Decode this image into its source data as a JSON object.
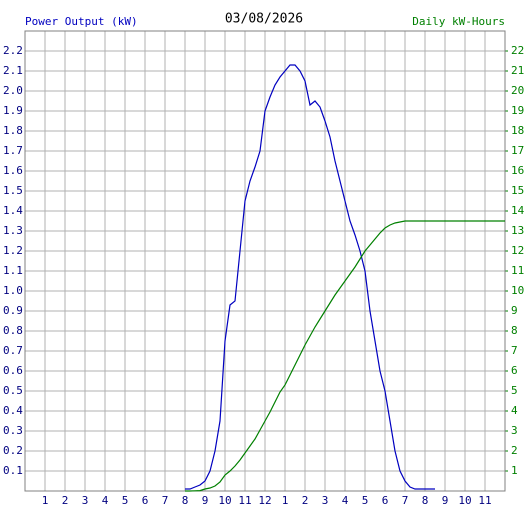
{
  "chart_data": {
    "type": "line",
    "title": "03/08/2026",
    "y_label": "Power Output (kW)",
    "y2_label": "Daily kW-Hours",
    "xlim": [
      0,
      24
    ],
    "xticks": [
      1,
      2,
      3,
      4,
      5,
      6,
      7,
      8,
      9,
      10,
      11,
      12,
      {
        "value": 13,
        "label": "1"
      },
      {
        "value": 14,
        "label": "2"
      },
      {
        "value": 15,
        "label": "3"
      },
      {
        "value": 16,
        "label": "4"
      },
      {
        "value": 17,
        "label": "5"
      },
      {
        "value": 18,
        "label": "6"
      },
      {
        "value": 19,
        "label": "7"
      },
      {
        "value": 20,
        "label": "8"
      },
      {
        "value": 21,
        "label": "9"
      },
      {
        "value": 22,
        "label": "10"
      },
      {
        "value": 23,
        "label": "11"
      }
    ],
    "ylim": [
      0,
      2.3
    ],
    "yticks": [
      0.1,
      0.2,
      0.3,
      0.4,
      0.5,
      0.6,
      0.7,
      0.8,
      0.9,
      {
        "value": 1,
        "label": "1.0"
      },
      1.1,
      1.2,
      1.3,
      1.4,
      1.5,
      1.6,
      1.7,
      1.8,
      1.9,
      {
        "value": 2,
        "label": "2.0"
      },
      2.1,
      2.2
    ],
    "y2lim": [
      0,
      23
    ],
    "y2ticks": [
      1,
      2,
      3,
      4,
      5,
      6,
      7,
      8,
      9,
      10,
      11,
      12,
      13,
      14,
      15,
      16,
      17,
      18,
      19,
      20,
      21,
      22
    ],
    "grid": true,
    "x": [
      8,
      8.25,
      8.5,
      8.75,
      9,
      9.25,
      9.5,
      9.75,
      10,
      10.25,
      10.5,
      10.75,
      11,
      11.25,
      11.5,
      11.75,
      12,
      12.25,
      12.5,
      12.75,
      13,
      13.25,
      13.5,
      13.75,
      14,
      14.25,
      14.5,
      14.75,
      15,
      15.25,
      15.5,
      15.75,
      16,
      16.25,
      16.5,
      16.75,
      17,
      17.25,
      17.5,
      17.75,
      18,
      18.25,
      18.5,
      18.75,
      19,
      19.25,
      19.5,
      19.75,
      20,
      20.25,
      20.5,
      20.75,
      21,
      21.25,
      21.5,
      21.75,
      22,
      22.25,
      22.5,
      22.75,
      23,
      23.25,
      23.5,
      23.75,
      24
    ],
    "series": [
      {
        "color": "#0000c0",
        "axis": "y",
        "values": [
          0.01,
          0.01,
          0.02,
          0.03,
          0.05,
          0.1,
          0.2,
          0.35,
          0.75,
          0.93,
          0.95,
          1.2,
          1.45,
          1.55,
          1.62,
          1.7,
          1.9,
          1.97,
          2.03,
          2.07,
          2.1,
          2.13,
          2.13,
          2.1,
          2.05,
          1.93,
          1.95,
          1.92,
          1.85,
          1.77,
          1.65,
          1.55,
          1.45,
          1.35,
          1.28,
          1.2,
          1.1,
          0.9,
          0.75,
          0.6,
          0.5,
          0.35,
          0.2,
          0.1,
          0.05,
          0.02,
          0.01,
          0.01,
          0.01,
          0.01,
          0.01,
          null,
          null,
          null,
          null,
          null,
          null,
          null,
          null,
          null,
          null,
          null,
          null,
          null,
          null
        ]
      },
      {
        "color": "#008000",
        "axis": "y2",
        "values": [
          0,
          0,
          0.01,
          0.02,
          0.1,
          0.15,
          0.25,
          0.45,
          0.8,
          1.0,
          1.25,
          1.55,
          1.9,
          2.25,
          2.6,
          3.05,
          3.5,
          3.95,
          4.45,
          4.95,
          5.3,
          5.8,
          6.3,
          6.8,
          7.3,
          7.75,
          8.2,
          8.6,
          9.0,
          9.4,
          9.8,
          10.15,
          10.5,
          10.85,
          11.2,
          11.6,
          12.0,
          12.3,
          12.6,
          12.9,
          13.15,
          13.3,
          13.4,
          13.45,
          13.5,
          13.5,
          13.5,
          13.5,
          13.5,
          13.5,
          13.5,
          13.5,
          13.5,
          13.5,
          13.5,
          13.5,
          13.5,
          13.5,
          13.5,
          13.5,
          13.5,
          13.5,
          13.5,
          13.5,
          13.5
        ]
      }
    ]
  }
}
